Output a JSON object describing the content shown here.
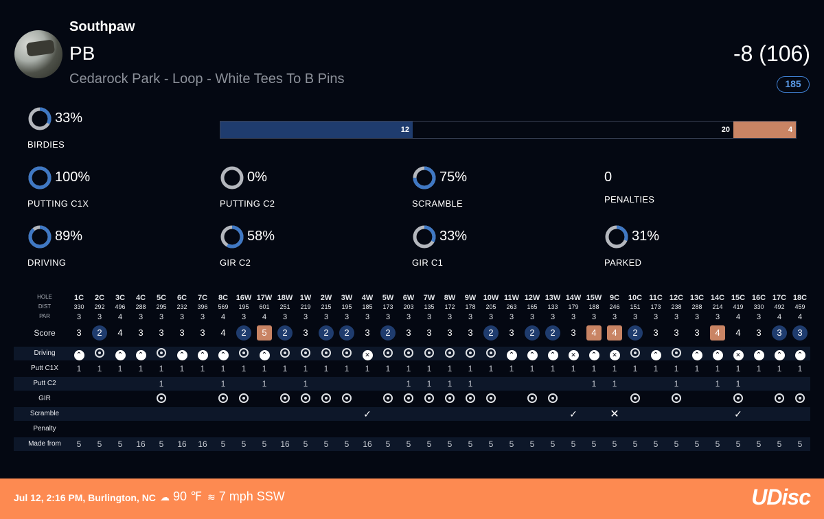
{
  "header": {
    "player": "Southpaw",
    "layout": "PB",
    "course": "Cedarock Park - Loop - White Tees To B Pins",
    "total": "-8 (106)",
    "rating": "185"
  },
  "birdies": {
    "pct": "33%",
    "label": "BIRDIES",
    "fraction": 0.33
  },
  "distribution": {
    "birdie_count": "12",
    "par_count": "20",
    "bogey_count": "4",
    "colors": {
      "birdie": "#1f3c6e",
      "par": "#040812",
      "bogey": "#c98464"
    }
  },
  "stats_row1": [
    {
      "pct": "100%",
      "label": "PUTTING C1X",
      "fraction": 1.0
    },
    {
      "pct": "0%",
      "label": "PUTTING C2",
      "fraction": 0.0
    },
    {
      "pct": "75%",
      "label": "SCRAMBLE",
      "fraction": 0.75
    },
    {
      "value": "0",
      "label": "PENALTIES"
    }
  ],
  "stats_row2": [
    {
      "pct": "89%",
      "label": "DRIVING",
      "fraction": 0.89
    },
    {
      "pct": "58%",
      "label": "GIR C2",
      "fraction": 0.58
    },
    {
      "pct": "33%",
      "label": "GIR C1",
      "fraction": 0.33
    },
    {
      "pct": "31%",
      "label": "PARKED",
      "fraction": 0.31
    }
  ],
  "scorecard": {
    "labels": {
      "hole": "HOLE",
      "dist": "DIST",
      "par": "PAR",
      "score": "Score",
      "driving": "Driving",
      "putt_c1x": "Putt C1X",
      "putt_c2": "Putt C2",
      "gir": "GIR",
      "scramble": "Scramble",
      "penalty": "Penalty",
      "made_from": "Made from"
    },
    "holes": [
      "1C",
      "2C",
      "3C",
      "4C",
      "5C",
      "6C",
      "7C",
      "8C",
      "16W",
      "17W",
      "18W",
      "1W",
      "2W",
      "3W",
      "4W",
      "5W",
      "6W",
      "7W",
      "8W",
      "9W",
      "10W",
      "11W",
      "12W",
      "13W",
      "14W",
      "15W",
      "9C",
      "10C",
      "11C",
      "12C",
      "13C",
      "14C",
      "15C",
      "16C",
      "17C",
      "18C"
    ],
    "dist": [
      "330",
      "292",
      "496",
      "288",
      "295",
      "232",
      "396",
      "569",
      "195",
      "601",
      "251",
      "219",
      "215",
      "195",
      "185",
      "173",
      "203",
      "135",
      "172",
      "178",
      "205",
      "263",
      "165",
      "133",
      "179",
      "188",
      "246",
      "151",
      "173",
      "238",
      "288",
      "214",
      "419",
      "330",
      "492",
      "459"
    ],
    "par": [
      "3",
      "3",
      "4",
      "3",
      "3",
      "3",
      "3",
      "4",
      "3",
      "4",
      "3",
      "3",
      "3",
      "3",
      "3",
      "3",
      "3",
      "3",
      "3",
      "3",
      "3",
      "3",
      "3",
      "3",
      "3",
      "3",
      "3",
      "3",
      "3",
      "3",
      "3",
      "3",
      "4",
      "3",
      "4",
      "4"
    ],
    "score": [
      "3",
      "2",
      "4",
      "3",
      "3",
      "3",
      "3",
      "4",
      "2",
      "5",
      "2",
      "3",
      "2",
      "2",
      "3",
      "2",
      "3",
      "3",
      "3",
      "3",
      "2",
      "3",
      "2",
      "2",
      "3",
      "4",
      "4",
      "2",
      "3",
      "3",
      "3",
      "4",
      "4",
      "3",
      "3",
      "3"
    ],
    "driving": [
      "up",
      "target",
      "up",
      "up",
      "target",
      "up",
      "up",
      "up",
      "target",
      "up",
      "target",
      "target",
      "target",
      "target",
      "x",
      "target",
      "target",
      "target",
      "target",
      "target",
      "target",
      "up",
      "up",
      "up",
      "x",
      "up",
      "x",
      "target",
      "up",
      "target",
      "up",
      "up",
      "x",
      "up",
      "up",
      "up"
    ],
    "putt_c1x": [
      "1",
      "1",
      "1",
      "1",
      "1",
      "1",
      "1",
      "1",
      "1",
      "1",
      "1",
      "1",
      "1",
      "1",
      "1",
      "1",
      "1",
      "1",
      "1",
      "1",
      "1",
      "1",
      "1",
      "1",
      "1",
      "1",
      "1",
      "1",
      "1",
      "1",
      "1",
      "1",
      "1",
      "1",
      "1",
      "1"
    ],
    "putt_c2": [
      "",
      "",
      "",
      "",
      "1",
      "",
      "",
      "1",
      "",
      "1",
      "",
      "1",
      "",
      "",
      "",
      "",
      "1",
      "1",
      "1",
      "1",
      "",
      "",
      "",
      "",
      "",
      "1",
      "1",
      "",
      "",
      "1",
      "",
      "1",
      "1",
      "",
      "",
      ""
    ],
    "gir": [
      "",
      "",
      "",
      "",
      "target",
      "",
      "",
      "target",
      "target",
      "",
      "target",
      "target",
      "target",
      "target",
      "",
      "target",
      "target",
      "target",
      "target",
      "target",
      "target",
      "",
      "target",
      "target",
      "",
      "",
      "",
      "target",
      "",
      "target",
      "",
      "",
      "target",
      "",
      "target",
      "target"
    ],
    "scramble": [
      "",
      "",
      "",
      "",
      "",
      "",
      "",
      "",
      "",
      "",
      "",
      "",
      "",
      "",
      "check",
      "",
      "",
      "",
      "",
      "",
      "",
      "",
      "",
      "",
      "check",
      "",
      "x",
      "",
      "",
      "",
      "",
      "",
      "check",
      "",
      "",
      ""
    ],
    "made_from": [
      "5",
      "5",
      "5",
      "16",
      "5",
      "16",
      "16",
      "5",
      "5",
      "5",
      "16",
      "5",
      "5",
      "5",
      "16",
      "5",
      "5",
      "5",
      "5",
      "5",
      "5",
      "5",
      "5",
      "5",
      "5",
      "5",
      "5",
      "5",
      "5",
      "5",
      "5",
      "5",
      "5",
      "5",
      "5",
      "5"
    ]
  },
  "footer": {
    "date": "Jul 12, 2:16 PM, Burlington, NC",
    "temp": "90 ℉",
    "wind": "7 mph SSW",
    "logo": "UDisc"
  }
}
